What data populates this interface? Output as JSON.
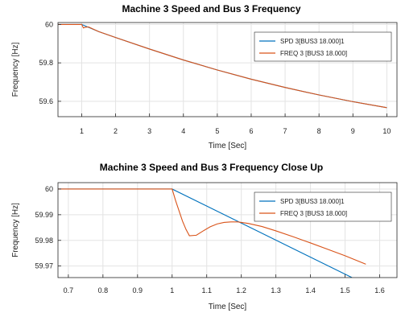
{
  "chart_data": [
    {
      "type": "line",
      "title": "Machine 3 Speed and Bus 3 Frequency",
      "xlabel": "Time [Sec]",
      "ylabel": "Frequency [Hz]",
      "xlim": [
        0.3,
        10.3
      ],
      "ylim": [
        59.52,
        60.01
      ],
      "xticks": [
        1,
        2,
        3,
        4,
        5,
        6,
        7,
        8,
        9,
        10
      ],
      "yticks": [
        59.6,
        59.8,
        60
      ],
      "ytick_labels": [
        "59.6",
        "59.8",
        "60"
      ],
      "grid": true,
      "legend_position": "top-right",
      "series": [
        {
          "name": "SPD 3[BUS3 18.000]1",
          "color": "#0072bd",
          "x": [
            0.3,
            1.0,
            1.5,
            2,
            3,
            4,
            5,
            6,
            7,
            8,
            9,
            10
          ],
          "y": [
            60.0,
            60.0,
            59.963,
            59.932,
            59.872,
            59.815,
            59.763,
            59.715,
            59.672,
            59.633,
            59.598,
            59.567
          ]
        },
        {
          "name": "FREQ 3 [BUS3 18.000]",
          "color": "#d95319",
          "x": [
            0.3,
            1.0,
            1.05,
            1.1,
            1.2,
            1.5,
            2,
            3,
            4,
            5,
            6,
            7,
            8,
            9,
            10
          ],
          "y": [
            60.0,
            60.0,
            59.982,
            59.985,
            59.987,
            59.963,
            59.932,
            59.872,
            59.815,
            59.763,
            59.715,
            59.672,
            59.633,
            59.598,
            59.567
          ]
        }
      ]
    },
    {
      "type": "line",
      "title": "Machine 3 Speed and Bus 3 Frequency Close Up",
      "xlabel": "Time [Sec]",
      "ylabel": "Frequency [Hz]",
      "xlim": [
        0.67,
        1.65
      ],
      "ylim": [
        59.9655,
        60.0025
      ],
      "xticks": [
        0.7,
        0.8,
        0.9,
        1,
        1.1,
        1.2,
        1.3,
        1.4,
        1.5,
        1.6
      ],
      "xtick_labels": [
        "0.7",
        "0.8",
        "0.9",
        "1",
        "1.1",
        "1.2",
        "1.3",
        "1.4",
        "1.5",
        "1.6"
      ],
      "yticks": [
        59.97,
        59.98,
        59.99,
        60
      ],
      "ytick_labels": [
        "59.97",
        "59.98",
        "59.99",
        "60"
      ],
      "grid": true,
      "legend_position": "top-right",
      "series": [
        {
          "name": "SPD 3[BUS3 18.000]1",
          "color": "#0072bd",
          "x": [
            0.67,
            1.0,
            1.52
          ],
          "y": [
            60.0,
            60.0,
            59.9655
          ]
        },
        {
          "name": "FREQ 3 [BUS3 18.000]",
          "color": "#d95319",
          "x": [
            0.67,
            1.0,
            1.01,
            1.02,
            1.03,
            1.04,
            1.05,
            1.07,
            1.09,
            1.11,
            1.13,
            1.15,
            1.17,
            1.19,
            1.22,
            1.26,
            1.3,
            1.35,
            1.4,
            1.45,
            1.5,
            1.56
          ],
          "y": [
            60.0,
            60.0,
            59.9955,
            59.9915,
            59.9875,
            59.9843,
            59.9818,
            59.982,
            59.9837,
            59.9853,
            59.9864,
            59.987,
            59.9872,
            59.9872,
            59.9866,
            59.9854,
            59.9837,
            59.9814,
            59.979,
            59.9765,
            59.974,
            59.9707
          ]
        }
      ]
    }
  ]
}
